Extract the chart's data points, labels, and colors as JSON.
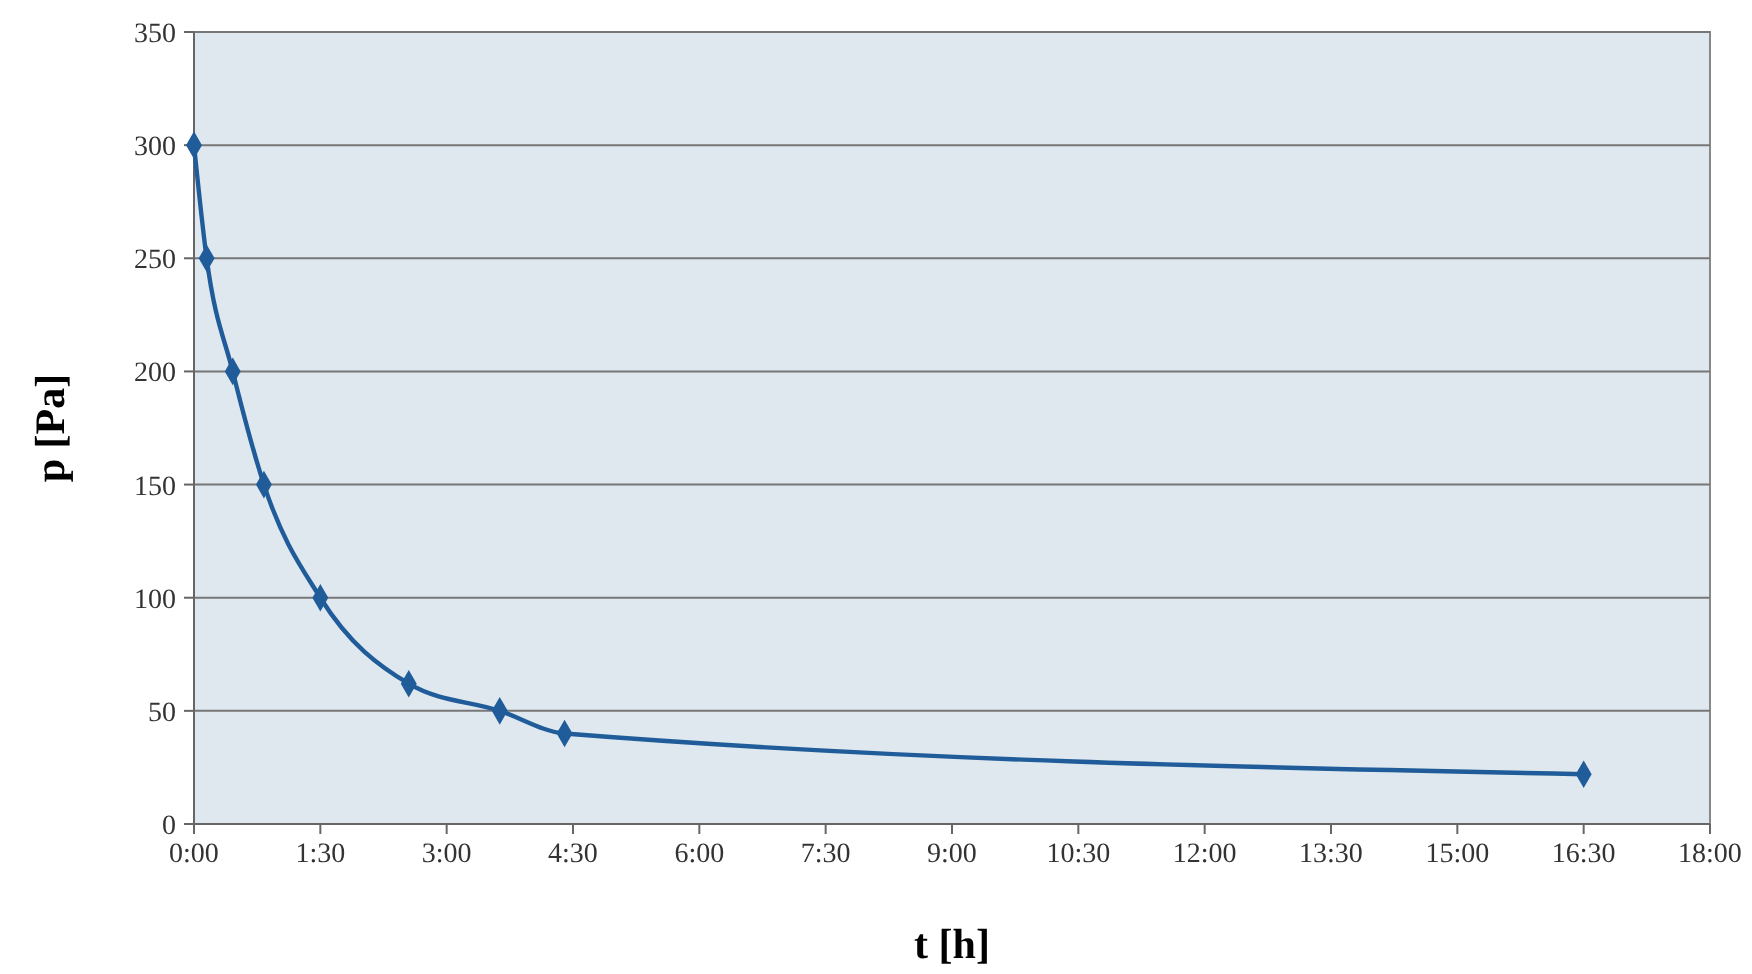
{
  "chart_data": {
    "type": "line",
    "xlabel": "t [h]",
    "ylabel": "p [Pa]",
    "x": [
      0,
      0.15,
      0.46,
      0.83,
      1.5,
      2.55,
      3.63,
      4.4,
      16.5
    ],
    "series": [
      {
        "color": "#1f5c99",
        "values": [
          300,
          250,
          200,
          150,
          100,
          62,
          50,
          40,
          22
        ]
      }
    ],
    "xlim": [
      0,
      18
    ],
    "xticks": [
      {
        "value": 0,
        "label": "0:00"
      },
      {
        "value": 1.5,
        "label": "1:30"
      },
      {
        "value": 3,
        "label": "3:00"
      },
      {
        "value": 4.5,
        "label": "4:30"
      },
      {
        "value": 6,
        "label": "6:00"
      },
      {
        "value": 7.5,
        "label": "7:30"
      },
      {
        "value": 9,
        "label": "9:00"
      },
      {
        "value": 10.5,
        "label": "10:30"
      },
      {
        "value": 12,
        "label": "12:00"
      },
      {
        "value": 13.5,
        "label": "13:30"
      },
      {
        "value": 15,
        "label": "15:00"
      },
      {
        "value": 16.5,
        "label": "16:30"
      },
      {
        "value": 18,
        "label": "18:00"
      }
    ],
    "ylim": [
      0,
      350
    ],
    "yticks": [
      0,
      50,
      100,
      150,
      200,
      250,
      300,
      350
    ],
    "grid": "y",
    "marker": "diamond",
    "line_style": "solid"
  }
}
